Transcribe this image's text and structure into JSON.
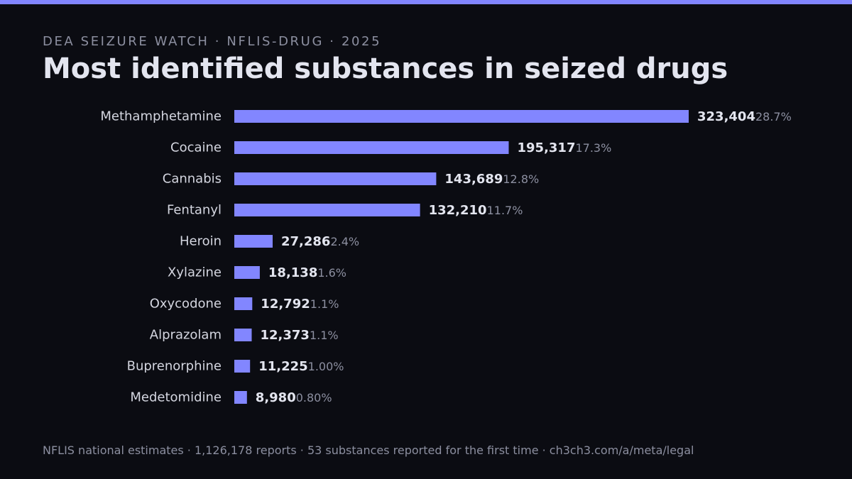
{
  "header": {
    "kicker": "DEA SEIZURE WATCH · NFLIS-DRUG · 2025",
    "title": "Most identified substances in seized drugs"
  },
  "footer": {
    "text": "NFLIS national estimates · 1,126,178 reports · 53 substances reported for the first time · ch3ch3.com/a/meta/legal"
  },
  "colors": {
    "background": "#0b0c12",
    "accent": "#8286ff",
    "value_text": "#e3e5ef",
    "muted_text": "#8c8fa0",
    "category_text": "#d4d6e0"
  },
  "chart_data": {
    "type": "bar",
    "orientation": "horizontal",
    "categories": [
      "Methamphetamine",
      "Cocaine",
      "Cannabis",
      "Fentanyl",
      "Heroin",
      "Xylazine",
      "Oxycodone",
      "Alprazolam",
      "Buprenorphine",
      "Medetomidine"
    ],
    "values": [
      323404,
      195317,
      143689,
      132210,
      27286,
      18138,
      12792,
      12373,
      11225,
      8980
    ],
    "value_labels": [
      "323,404",
      "195,317",
      "143,689",
      "132,210",
      "27,286",
      "18,138",
      "12,792",
      "12,373",
      "11,225",
      "8,980"
    ],
    "percent_labels": [
      "28.7%",
      "17.3%",
      "12.8%",
      "11.7%",
      "2.4%",
      "1.6%",
      "1.1%",
      "1.1%",
      "1.00%",
      "0.80%"
    ],
    "xlim": [
      0,
      323404
    ],
    "grid": false,
    "legend": "none"
  }
}
